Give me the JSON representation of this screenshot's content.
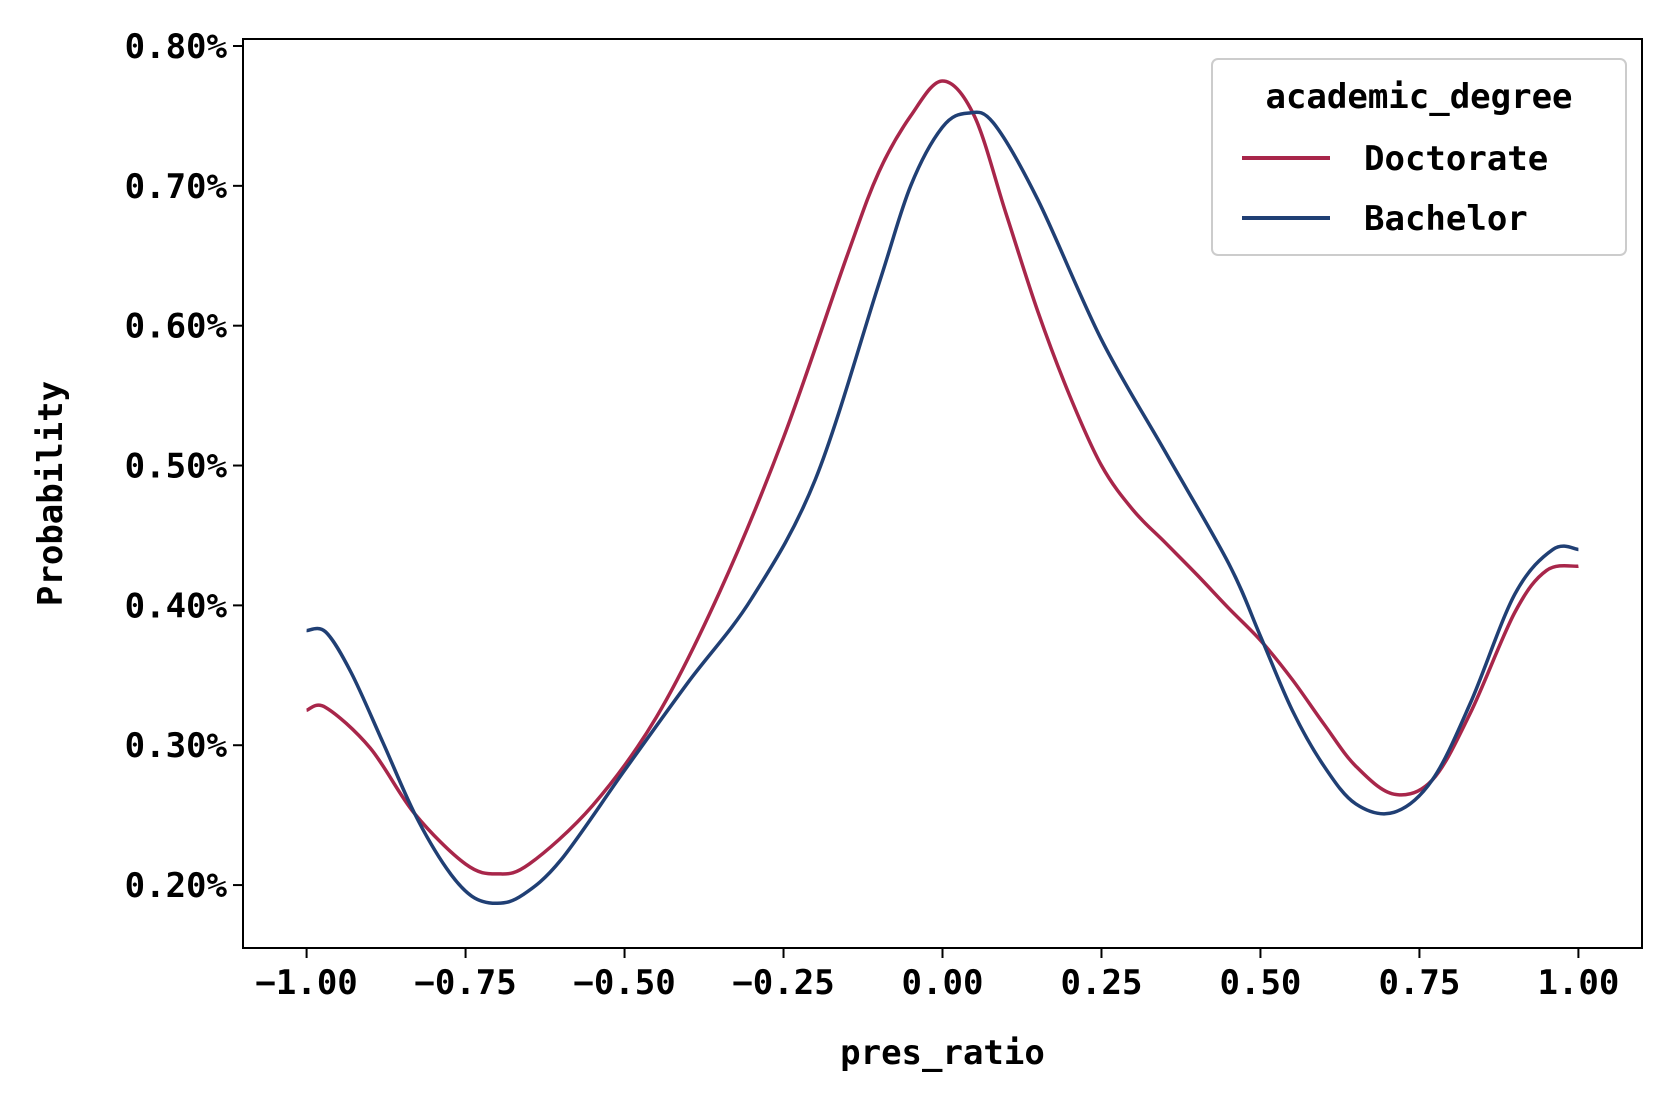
{
  "chart_data": {
    "type": "line",
    "title": "",
    "xlabel": "pres_ratio",
    "ylabel": "Probability",
    "xlim": [
      -1.1,
      1.1
    ],
    "ylim": [
      0.00155,
      0.00805
    ],
    "x_ticks": [
      -1.0,
      -0.75,
      -0.5,
      -0.25,
      0.0,
      0.25,
      0.5,
      0.75,
      1.0
    ],
    "x_tick_labels": [
      "−1.00",
      "−0.75",
      "−0.50",
      "−0.25",
      "0.00",
      "0.25",
      "0.50",
      "0.75",
      "1.00"
    ],
    "y_ticks": [
      0.002,
      0.003,
      0.004,
      0.005,
      0.006,
      0.007,
      0.008
    ],
    "y_tick_labels": [
      "0.20%",
      "0.30%",
      "0.40%",
      "0.50%",
      "0.60%",
      "0.70%",
      "0.80%"
    ],
    "grid": false,
    "legend": {
      "title": "academic_degree",
      "placement": "top-right"
    },
    "series": [
      {
        "name": "Doctorate",
        "color": "#a8264a",
        "x": [
          -1.0,
          -0.97,
          -0.9,
          -0.83,
          -0.75,
          -0.7,
          -0.65,
          -0.55,
          -0.45,
          -0.35,
          -0.25,
          -0.15,
          -0.1,
          -0.05,
          0.0,
          0.05,
          0.1,
          0.15,
          0.2,
          0.25,
          0.3,
          0.35,
          0.4,
          0.45,
          0.5,
          0.55,
          0.6,
          0.65,
          0.71,
          0.77,
          0.83,
          0.9,
          0.95,
          1.0
        ],
        "values": [
          0.00325,
          0.00327,
          0.00298,
          0.00251,
          0.00215,
          0.00208,
          0.00215,
          0.00257,
          0.0032,
          0.0041,
          0.0052,
          0.0065,
          0.0071,
          0.0075,
          0.00775,
          0.0075,
          0.0068,
          0.0061,
          0.0055,
          0.005,
          0.00468,
          0.00445,
          0.00422,
          0.00398,
          0.00375,
          0.00347,
          0.00315,
          0.00285,
          0.00265,
          0.00275,
          0.00323,
          0.00395,
          0.00425,
          0.00428
        ]
      },
      {
        "name": "Bachelor",
        "color": "#203f74",
        "x": [
          -1.0,
          -0.97,
          -0.93,
          -0.88,
          -0.83,
          -0.78,
          -0.74,
          -0.7,
          -0.66,
          -0.6,
          -0.5,
          -0.4,
          -0.3,
          -0.2,
          -0.1,
          -0.05,
          0.0,
          0.04,
          0.08,
          0.15,
          0.25,
          0.35,
          0.45,
          0.5,
          0.55,
          0.6,
          0.65,
          0.71,
          0.77,
          0.83,
          0.9,
          0.96,
          1.0
        ],
        "values": [
          0.00382,
          0.00381,
          0.00352,
          0.00302,
          0.00251,
          0.00212,
          0.00192,
          0.00187,
          0.00193,
          0.00218,
          0.00282,
          0.00345,
          0.00405,
          0.0049,
          0.0063,
          0.007,
          0.00742,
          0.00752,
          0.00745,
          0.0069,
          0.0059,
          0.0051,
          0.0043,
          0.00378,
          0.00325,
          0.00285,
          0.00258,
          0.00252,
          0.00275,
          0.0033,
          0.00408,
          0.0044,
          0.0044
        ]
      }
    ]
  }
}
